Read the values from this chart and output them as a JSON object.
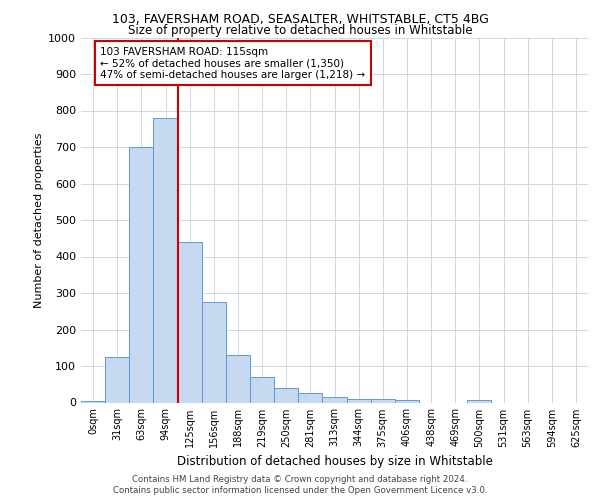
{
  "title1": "103, FAVERSHAM ROAD, SEASALTER, WHITSTABLE, CT5 4BG",
  "title2": "Size of property relative to detached houses in Whitstable",
  "xlabel": "Distribution of detached houses by size in Whitstable",
  "ylabel": "Number of detached properties",
  "bin_labels": [
    "0sqm",
    "31sqm",
    "63sqm",
    "94sqm",
    "125sqm",
    "156sqm",
    "188sqm",
    "219sqm",
    "250sqm",
    "281sqm",
    "313sqm",
    "344sqm",
    "375sqm",
    "406sqm",
    "438sqm",
    "469sqm",
    "500sqm",
    "531sqm",
    "563sqm",
    "594sqm",
    "625sqm"
  ],
  "bar_values": [
    5,
    125,
    700,
    780,
    440,
    275,
    130,
    70,
    40,
    25,
    15,
    10,
    10,
    8,
    0,
    0,
    8,
    0,
    0,
    0,
    0
  ],
  "bar_color": "#c6d9f0",
  "bar_edge_color": "#5b9bd5",
  "red_line_color": "#cc0000",
  "annotation_line1": "103 FAVERSHAM ROAD: 115sqm",
  "annotation_line2": "← 52% of detached houses are smaller (1,350)",
  "annotation_line3": "47% of semi-detached houses are larger (1,218) →",
  "annotation_box_color": "#ffffff",
  "annotation_box_edge": "#cc0000",
  "footer1": "Contains HM Land Registry data © Crown copyright and database right 2024.",
  "footer2": "Contains public sector information licensed under the Open Government Licence v3.0.",
  "ylim": [
    0,
    1000
  ],
  "yticks": [
    0,
    100,
    200,
    300,
    400,
    500,
    600,
    700,
    800,
    900,
    1000
  ],
  "bg_color": "#ffffff",
  "grid_color": "#d0d8e8"
}
